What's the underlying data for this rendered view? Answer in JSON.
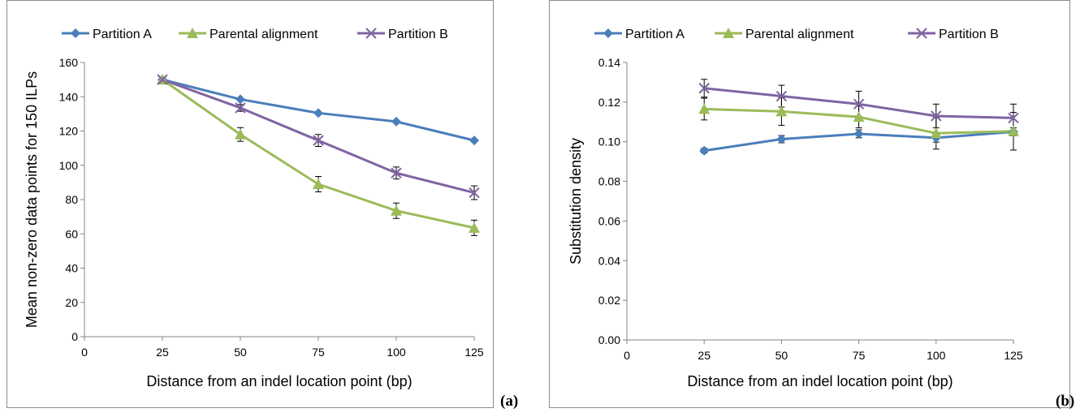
{
  "panel_labels": {
    "a": "(a)",
    "b": "(b)"
  },
  "colors": {
    "partition_a": "#4a7ebb",
    "parental": "#9bbb59",
    "partition_b": "#8064a2",
    "axis": "#868686"
  },
  "chart_data": [
    {
      "type": "line",
      "xlabel": "Distance from an indel location point (bp)",
      "ylabel": "Mean non-zero data points for 150 ILPs",
      "xlim": [
        0,
        125
      ],
      "ylim": [
        0,
        160
      ],
      "x_ticks": [
        "0",
        "25",
        "50",
        "75",
        "100",
        "125"
      ],
      "y_ticks": [
        "0",
        "20",
        "40",
        "60",
        "80",
        "100",
        "120",
        "140",
        "160"
      ],
      "grid": false,
      "legend_position": "top",
      "x": [
        25,
        50,
        75,
        100,
        125
      ],
      "series": [
        {
          "name": "Partition A",
          "marker": "diamond",
          "color": "#4a7ebb",
          "values": [
            150,
            138.5,
            130.5,
            125.5,
            114.5
          ],
          "errors": [
            0,
            0,
            0,
            0,
            0
          ]
        },
        {
          "name": "Parental alignment",
          "marker": "triangle",
          "color": "#9bbb59",
          "values": [
            150,
            118,
            89,
            73.5,
            63.5
          ],
          "errors": [
            0,
            4,
            4.5,
            4.5,
            4.5
          ]
        },
        {
          "name": "Partition B",
          "marker": "x",
          "color": "#8064a2",
          "values": [
            150,
            133.5,
            114.5,
            95.5,
            84
          ],
          "errors": [
            0,
            2,
            3.5,
            3.5,
            4
          ]
        }
      ]
    },
    {
      "type": "line",
      "xlabel": "Distance from an indel location point (bp)",
      "ylabel": "Substitution density",
      "xlim": [
        0,
        125
      ],
      "ylim": [
        0,
        0.14
      ],
      "x_ticks": [
        "0",
        "25",
        "50",
        "75",
        "100",
        "125"
      ],
      "y_ticks": [
        "0.00",
        "0.02",
        "0.04",
        "0.06",
        "0.08",
        "0.10",
        "0.12",
        "0.14"
      ],
      "grid": false,
      "legend_position": "top",
      "x": [
        25,
        50,
        75,
        100,
        125
      ],
      "series": [
        {
          "name": "Partition A",
          "marker": "diamond",
          "color": "#4a7ebb",
          "values": [
            0.0955,
            0.1013,
            0.104,
            0.102,
            0.105
          ],
          "errors": [
            0.0012,
            0.0018,
            0.002,
            0.0022,
            0.002
          ]
        },
        {
          "name": "Parental alignment",
          "marker": "triangle",
          "color": "#9bbb59",
          "values": [
            0.1165,
            0.1153,
            0.1125,
            0.1043,
            0.1053
          ],
          "errors": [
            0.0055,
            0.007,
            0.0055,
            0.008,
            0.0095
          ]
        },
        {
          "name": "Partition B",
          "marker": "x",
          "color": "#8064a2",
          "values": [
            0.127,
            0.123,
            0.119,
            0.113,
            0.112
          ],
          "errors": [
            0.0045,
            0.0055,
            0.0065,
            0.006,
            0.007
          ]
        }
      ]
    }
  ]
}
